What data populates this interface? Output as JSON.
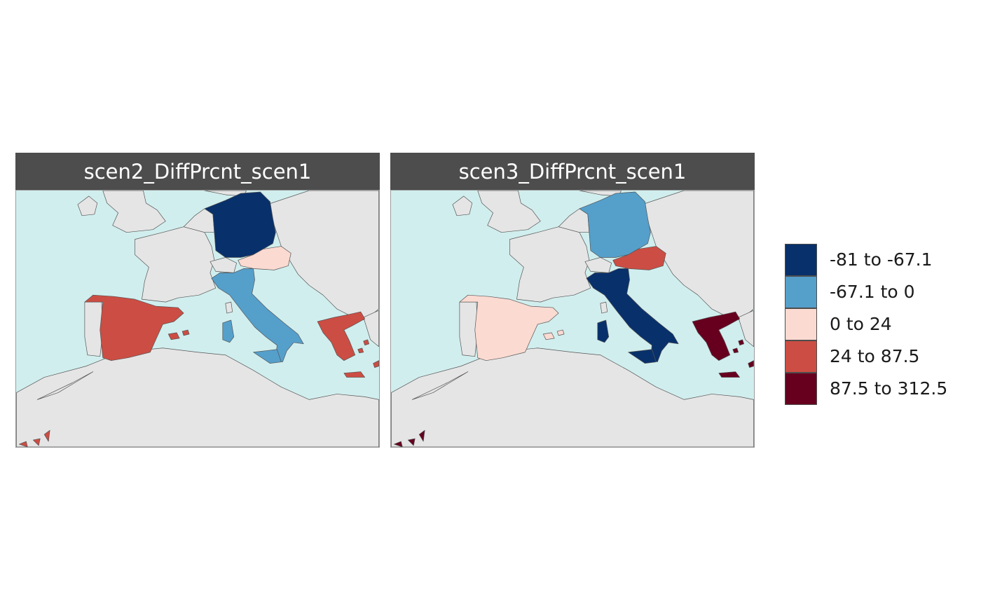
{
  "panels": [
    {
      "title": "scen2_DiffPrcnt_scen1",
      "values": {
        "germany": "-81 to -67.1",
        "austria": "0 to 24",
        "italy": "-67.1 to 0",
        "spain": "24 to 87.5",
        "greece": "24 to 87.5",
        "malta": "24 to 87.5"
      }
    },
    {
      "title": "scen3_DiffPrcnt_scen1",
      "values": {
        "germany": "-67.1 to 0",
        "austria": "24 to 87.5",
        "italy": "-81 to -67.1",
        "spain": "0 to 24",
        "greece": "87.5 to 312.5",
        "malta": "87.5 to 312.5"
      }
    }
  ],
  "legend": {
    "items": [
      {
        "label": "-81 to -67.1",
        "color": "#08306b"
      },
      {
        "label": "-67.1 to 0",
        "color": "#559fcb"
      },
      {
        "label": "0 to 24",
        "color": "#fbdad1"
      },
      {
        "label": "24 to 87.5",
        "color": "#cc4d43"
      },
      {
        "label": "87.5 to 312.5",
        "color": "#67001f"
      }
    ]
  },
  "colors": {
    "sea": "#d1eeee",
    "land": "#e5e5e5",
    "border": "#555555",
    "strip": "#4d4d4d"
  }
}
